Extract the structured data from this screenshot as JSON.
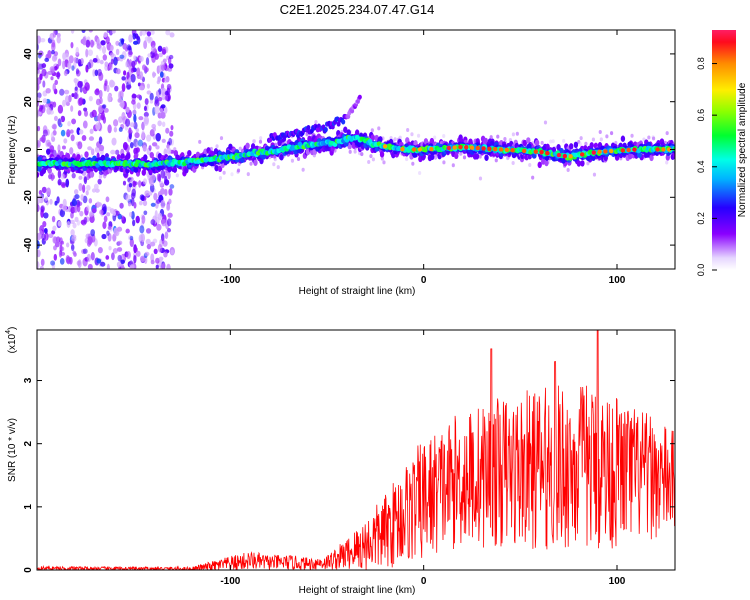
{
  "title": "C2E1.2025.234.07.47.G14",
  "chart_data": [
    {
      "type": "heatmap",
      "xlabel": "Height of straight line (km)",
      "ylabel": "Frequency (Hz)",
      "xlim": [
        -200,
        130
      ],
      "ylim": [
        -50,
        50
      ],
      "xticks": [
        -100,
        0,
        100
      ],
      "yticks": [
        -40,
        -20,
        0,
        20,
        40
      ],
      "colorbar": {
        "label": "Normalized spectral amplitude",
        "range": [
          0,
          0.93
        ],
        "ticks": [
          "0.0",
          "0.2",
          "0.4",
          "0.6",
          "0.8"
        ]
      },
      "ridge": {
        "x": [
          -200,
          -170,
          -140,
          -120,
          -100,
          -80,
          -60,
          -45,
          -35,
          -25,
          -10,
          0,
          20,
          40,
          60,
          75,
          90,
          110,
          130
        ],
        "frequency_hz": [
          -6,
          -6,
          -6,
          -5,
          -3,
          -1,
          2,
          3,
          5,
          2,
          0,
          0,
          1,
          0,
          -1,
          -3,
          -1,
          0,
          0
        ]
      },
      "upper_branch": {
        "x": [
          -80,
          -60,
          -50,
          -40
        ],
        "frequency_hz": [
          5,
          8,
          10,
          13
        ]
      },
      "broadband_noise_region_x": [
        -200,
        -130
      ]
    },
    {
      "type": "line",
      "xlabel": "Height of straight line (km)",
      "ylabel": "SNR (10 * v/v)",
      "scale_label": "(x10",
      "scale_exponent": "4",
      "xlim": [
        -200,
        130
      ],
      "ylim": [
        0,
        3.8
      ],
      "xticks": [
        -100,
        0,
        100
      ],
      "yticks": [
        0,
        1,
        2,
        3
      ],
      "series": [
        {
          "name": "SNR",
          "color": "#ff0000",
          "envelope_x": [
            -200,
            -150,
            -120,
            -100,
            -90,
            -80,
            -70,
            -60,
            -50,
            -40,
            -30,
            -20,
            -10,
            0,
            10,
            20,
            40,
            60,
            80,
            95,
            110,
            130
          ],
          "mean_snr": [
            0.03,
            0.02,
            0.02,
            0.1,
            0.15,
            0.12,
            0.12,
            0.1,
            0.12,
            0.25,
            0.4,
            0.6,
            0.9,
            1.1,
            1.3,
            1.45,
            1.55,
            1.6,
            1.65,
            1.6,
            1.5,
            1.4
          ],
          "amplitude": [
            0.03,
            0.03,
            0.03,
            0.12,
            0.15,
            0.12,
            0.12,
            0.1,
            0.12,
            0.25,
            0.45,
            0.6,
            0.8,
            1.0,
            1.0,
            1.1,
            1.2,
            1.3,
            1.35,
            1.3,
            1.1,
            0.8
          ],
          "peaks": [
            {
              "x": 35,
              "y": 3.5
            },
            {
              "x": 68,
              "y": 3.3
            },
            {
              "x": 90,
              "y": 3.8
            }
          ]
        }
      ]
    }
  ]
}
